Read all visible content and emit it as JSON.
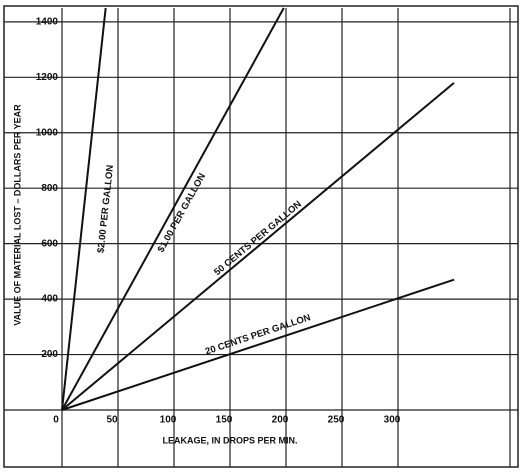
{
  "chart_data": {
    "type": "line",
    "x_label": "LEAKAGE, IN DROPS PER MIN.",
    "y_label": "VALUE OF MATERIAL LOST – DOLLARS PER YEAR",
    "xlim": [
      0,
      400
    ],
    "xticks": [
      0,
      50,
      100,
      150,
      200,
      250,
      300
    ],
    "ylim": [
      0,
      1450
    ],
    "yticks": [
      0,
      200,
      400,
      600,
      800,
      1000,
      1200,
      1400
    ],
    "grid": true,
    "series": [
      {
        "name": "$2.00 PER GALLON",
        "color": "#111111",
        "x": [
          0,
          39
        ],
        "values": [
          0,
          1450
        ]
      },
      {
        "name": "$1.00 PER GALLON",
        "color": "#111111",
        "x": [
          0,
          198
        ],
        "values": [
          0,
          1450
        ]
      },
      {
        "name": "50 CENTS PER GALLON",
        "color": "#111111",
        "x": [
          0,
          350
        ],
        "values": [
          0,
          1180
        ]
      },
      {
        "name": "20 CENTS PER GALLON",
        "color": "#111111",
        "x": [
          0,
          350
        ],
        "values": [
          0,
          470
        ]
      }
    ]
  }
}
